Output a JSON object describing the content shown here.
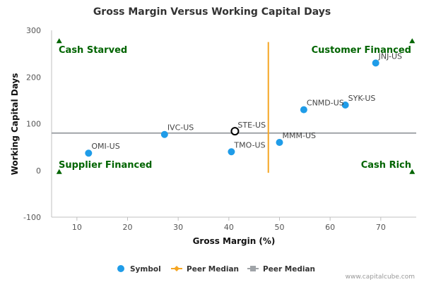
{
  "chart_data": {
    "type": "scatter",
    "title": "Gross Margin Versus Working Capital Days",
    "xlabel": "Gross Margin (%)",
    "ylabel": "Working Capital Days",
    "xlim": [
      5,
      77
    ],
    "ylim": [
      -100,
      300
    ],
    "xticks": [
      10,
      20,
      30,
      40,
      50,
      60,
      70
    ],
    "yticks": [
      -100,
      0,
      100,
      200,
      300
    ],
    "grid": false,
    "legend_position": "bottom",
    "colors": {
      "symbol": "#1f9ce8",
      "peer_median_x": "#f5a623",
      "peer_median_y": "#a0a4a8",
      "quadrant_text": "#006400",
      "highlight": "#000000"
    },
    "series": [
      {
        "name": "Symbol",
        "points": [
          {
            "label": "JNJ-US",
            "x": 69.0,
            "y": 230
          },
          {
            "label": "SYK-US",
            "x": 63.0,
            "y": 140
          },
          {
            "label": "CNMD-US",
            "x": 54.8,
            "y": 130
          },
          {
            "label": "MMM-US",
            "x": 50.0,
            "y": 60
          },
          {
            "label": "TMO-US",
            "x": 40.5,
            "y": 40
          },
          {
            "label": "IVC-US",
            "x": 27.3,
            "y": 77
          },
          {
            "label": "OMI-US",
            "x": 12.3,
            "y": 37
          }
        ]
      }
    ],
    "highlight": {
      "label": "STE-US",
      "x": 41.2,
      "y": 84
    },
    "peer_median": {
      "name": "Peer Median",
      "x": 47.8,
      "y": 80
    },
    "quadrants": [
      {
        "label": "Cash Starved",
        "position": "top-left"
      },
      {
        "label": "Customer Financed",
        "position": "top-right"
      },
      {
        "label": "Supplier Financed",
        "position": "bottom-left"
      },
      {
        "label": "Cash Rich",
        "position": "bottom-right"
      }
    ],
    "quadrant_markers": [
      {
        "x": 6.5,
        "y": 277
      },
      {
        "x": 76.2,
        "y": 277
      },
      {
        "x": 6.5,
        "y": -3
      },
      {
        "x": 76.2,
        "y": -3
      }
    ],
    "legend": [
      {
        "label": "Symbol",
        "kind": "dot"
      },
      {
        "label": "Peer Median",
        "kind": "diamond-line"
      },
      {
        "label": "Peer Median",
        "kind": "square-line"
      }
    ]
  },
  "credit": "www.capitalcube.com"
}
